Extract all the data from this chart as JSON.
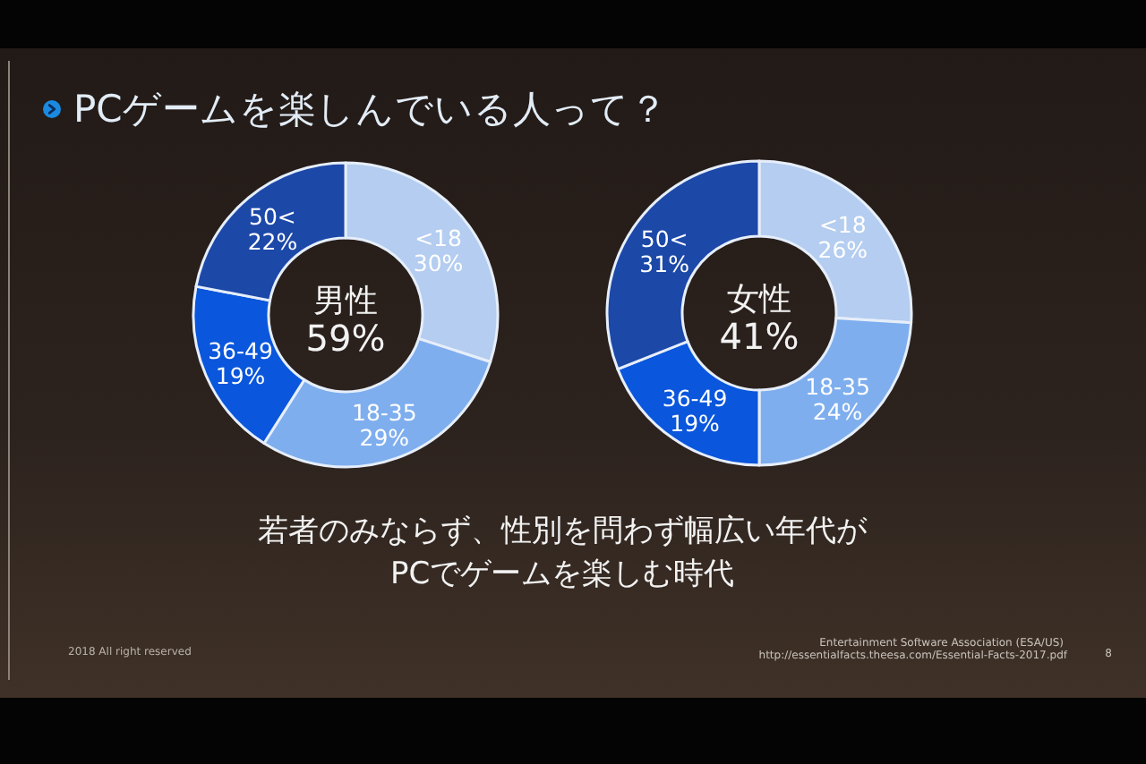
{
  "chart_data": [
    {
      "type": "other",
      "title": "PCゲームを楽しんでいる人って？",
      "annotations": [
        "若者のみならず、性別を問わず幅広い年代が",
        "PCでゲームを楽しむ時代",
        "2018 All right reserved",
        "Entertainment Software Association (ESA/US)",
        "http://essentialfacts.theesa.com/Essential-Facts-2017.pdf",
        "8"
      ]
    },
    {
      "type": "donut",
      "title": "男性",
      "annotations": [
        "59%"
      ],
      "categories": [
        "<18",
        "18-35",
        "36-49",
        "50<"
      ],
      "values": [
        30,
        29,
        19,
        22
      ],
      "colors": [
        "#b4cdf0",
        "#7eaeee",
        "#0a56dc",
        "#1c48a8"
      ],
      "value_labels": [
        "30%",
        "29%",
        "19%",
        "22%"
      ]
    },
    {
      "type": "donut",
      "title": "女性",
      "annotations": [
        "41%"
      ],
      "categories": [
        "<18",
        "18-35",
        "36-49",
        "50<"
      ],
      "values": [
        26,
        24,
        19,
        31
      ],
      "colors": [
        "#b4cdf0",
        "#7eaeee",
        "#0a56dc",
        "#1c48a8"
      ],
      "value_labels": [
        "26%",
        "24%",
        "19%",
        "31%"
      ]
    }
  ]
}
